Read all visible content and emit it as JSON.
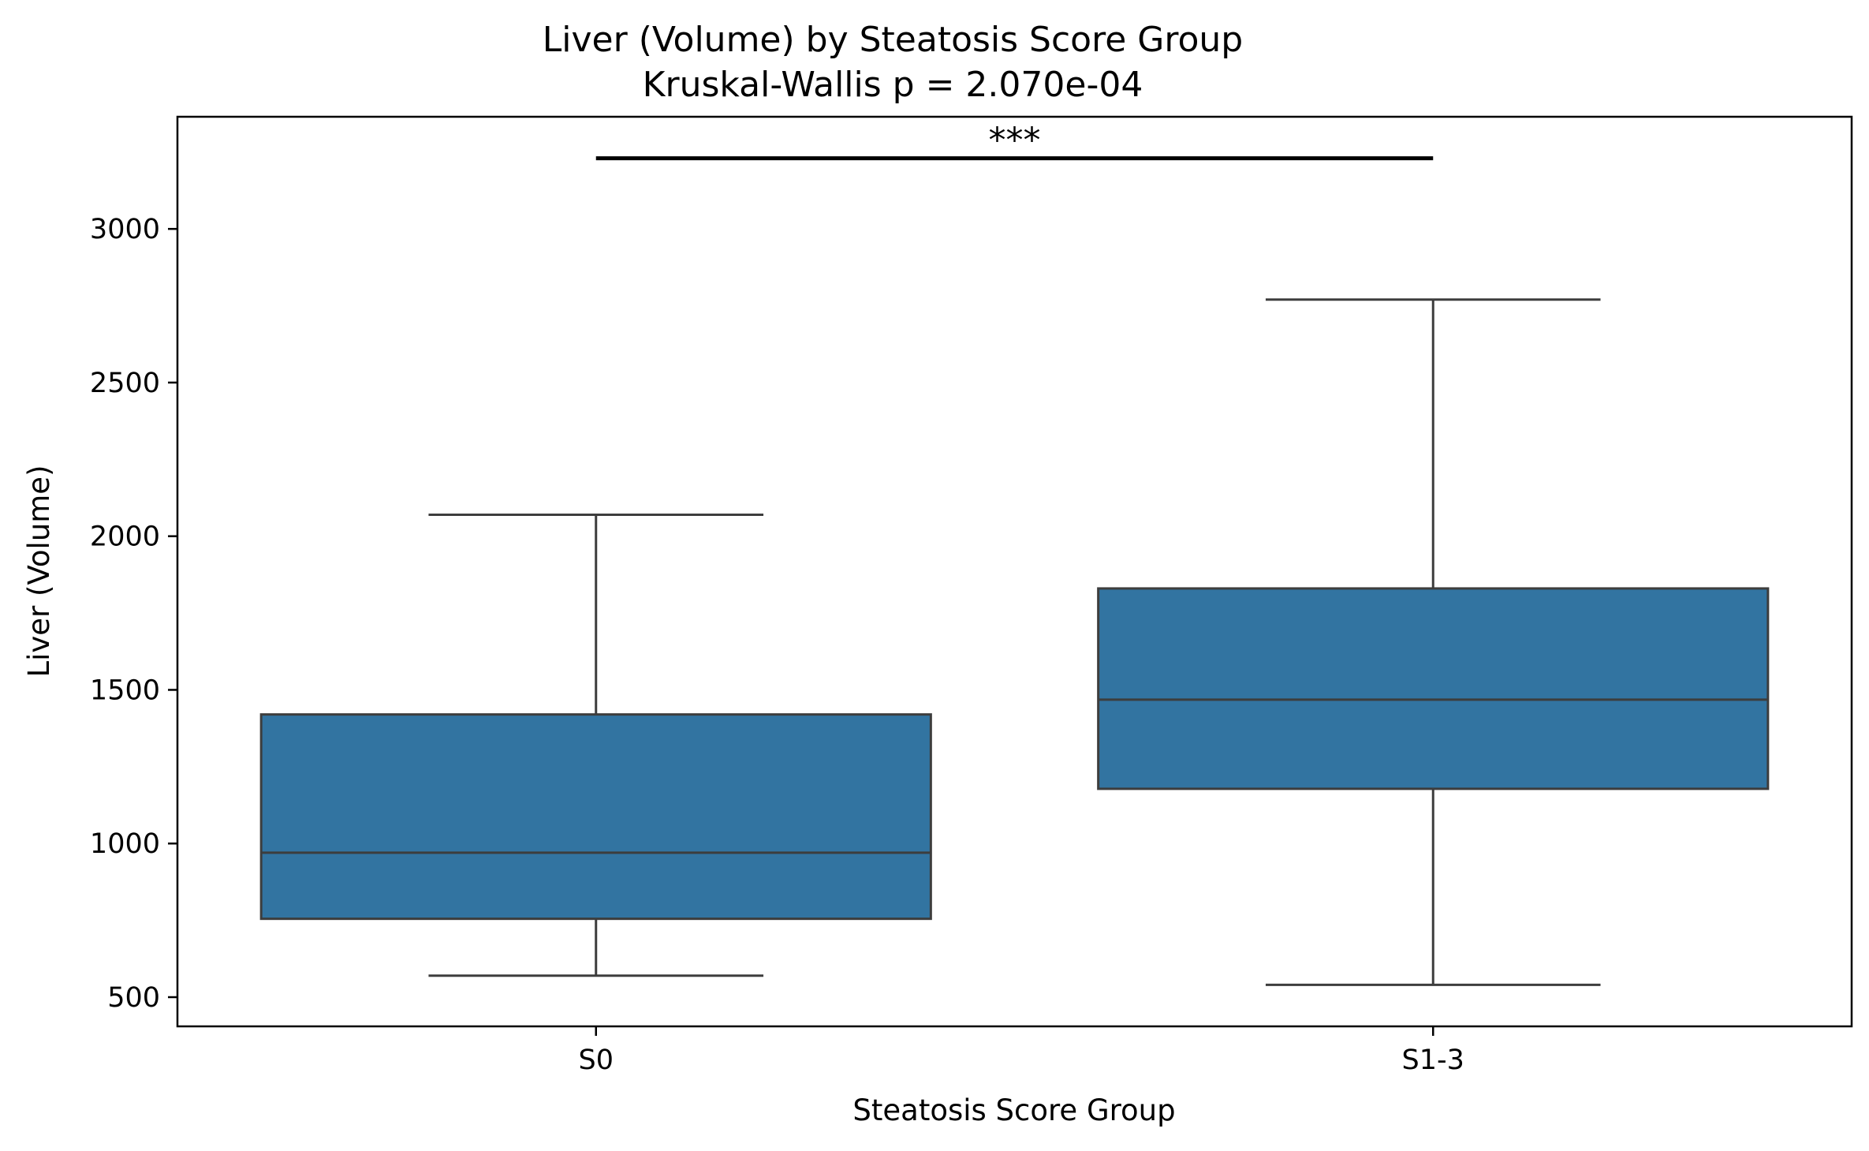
{
  "chart_data": {
    "type": "box",
    "title": "Liver (Volume) by Steatosis Score Group",
    "subtitle": "Kruskal-Wallis p = 2.070e-04",
    "xlabel": "Steatosis Score Group",
    "ylabel": "Liver (Volume)",
    "ylim": [
      405,
      3365
    ],
    "yticks": [
      500,
      1000,
      1500,
      2000,
      2500,
      3000
    ],
    "categories": [
      "S0",
      "S1-3"
    ],
    "boxes": [
      {
        "category": "S0",
        "whisker_low": 570,
        "q1": 755,
        "median": 970,
        "q3": 1420,
        "whisker_high": 2070
      },
      {
        "category": "S1-3",
        "whisker_low": 540,
        "q1": 1178,
        "median": 1468,
        "q3": 1830,
        "whisker_high": 2770
      }
    ],
    "box_color": "#3274a1",
    "line_color": "#3d3d3d",
    "significance": {
      "from": "S0",
      "to": "S1-3",
      "y": 3230,
      "label": "***"
    },
    "grid": false,
    "legend": "none"
  }
}
